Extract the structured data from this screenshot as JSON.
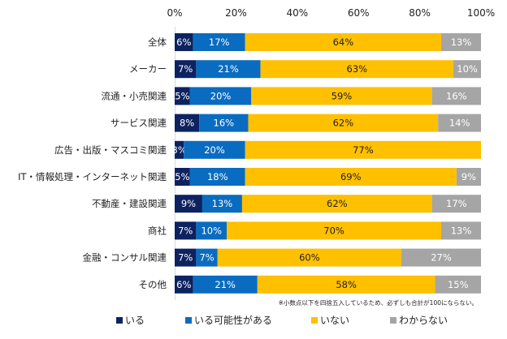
{
  "chart_data": {
    "type": "bar",
    "orientation": "horizontal",
    "stacked": true,
    "title": "",
    "xlabel": "",
    "ylabel": "",
    "xlim": [
      0,
      100
    ],
    "x_ticks": [
      "0%",
      "20%",
      "40%",
      "60%",
      "80%",
      "100%"
    ],
    "grid": false,
    "legend_position": "bottom",
    "categories": [
      "全体",
      "メーカー",
      "流通・小売関連",
      "サービス関連",
      "広告・出版・マスコミ関連",
      "IT・情報処理・インターネット関連",
      "不動産・建設関連",
      "商社",
      "金融・コンサル関連",
      "その他"
    ],
    "series": [
      {
        "name": "いる",
        "color": "#0d2260",
        "label_color": "#ffffff",
        "values": [
          6,
          7,
          5,
          8,
          3,
          5,
          9,
          7,
          7,
          6
        ]
      },
      {
        "name": "いる可能性がある",
        "color": "#0a6cc0",
        "label_color": "#ffffff",
        "values": [
          17,
          21,
          20,
          16,
          20,
          18,
          13,
          10,
          7,
          21
        ]
      },
      {
        "name": "いない",
        "color": "#ffc000",
        "label_color": "#222222",
        "values": [
          64,
          63,
          59,
          62,
          77,
          69,
          62,
          70,
          60,
          58
        ]
      },
      {
        "name": "わからない",
        "color": "#a5a5a5",
        "label_color": "#ffffff",
        "values": [
          13,
          10,
          16,
          14,
          0,
          9,
          17,
          13,
          27,
          15
        ]
      }
    ],
    "footnote": "※小数点以下を四捨五入しているため、必ずしも合計が100にならない。"
  }
}
